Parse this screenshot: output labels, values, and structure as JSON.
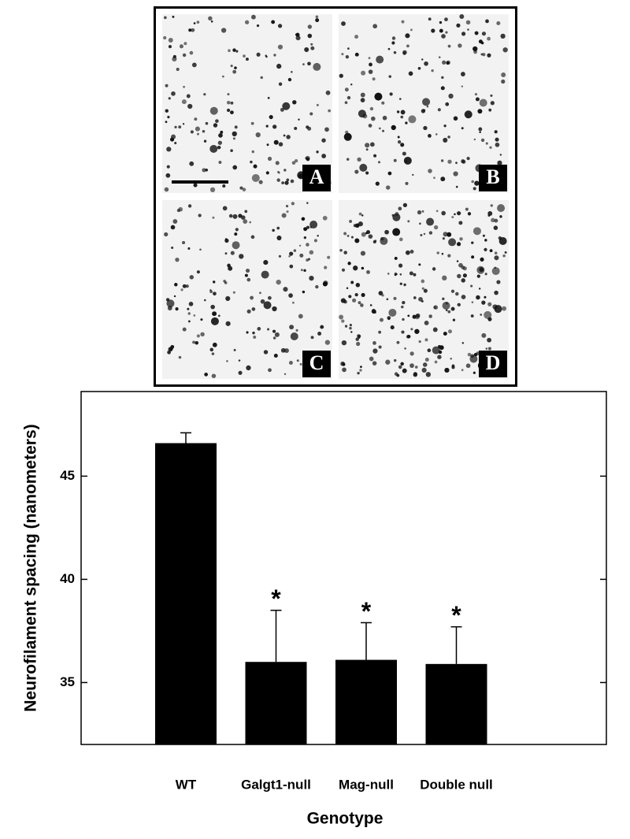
{
  "panels": [
    "A",
    "B",
    "C",
    "D"
  ],
  "chart_data": {
    "type": "bar",
    "x_label": "Genotype",
    "y_label": "Neurofilament spacing (nanometers)",
    "categories": [
      "WT",
      "Galgt1-null",
      "Mag-null",
      "Double null"
    ],
    "values": [
      46.6,
      36.0,
      36.1,
      35.9
    ],
    "errors": [
      0.5,
      2.5,
      1.8,
      1.8
    ],
    "color": "#000000",
    "annotations": [
      {
        "text": "*",
        "x": "Galgt1-null"
      },
      {
        "text": "*",
        "x": "Mag-null"
      },
      {
        "text": "*",
        "x": "Double null"
      }
    ],
    "ylim": [
      32,
      49.1
    ],
    "yticks": [
      35,
      40,
      45
    ]
  }
}
